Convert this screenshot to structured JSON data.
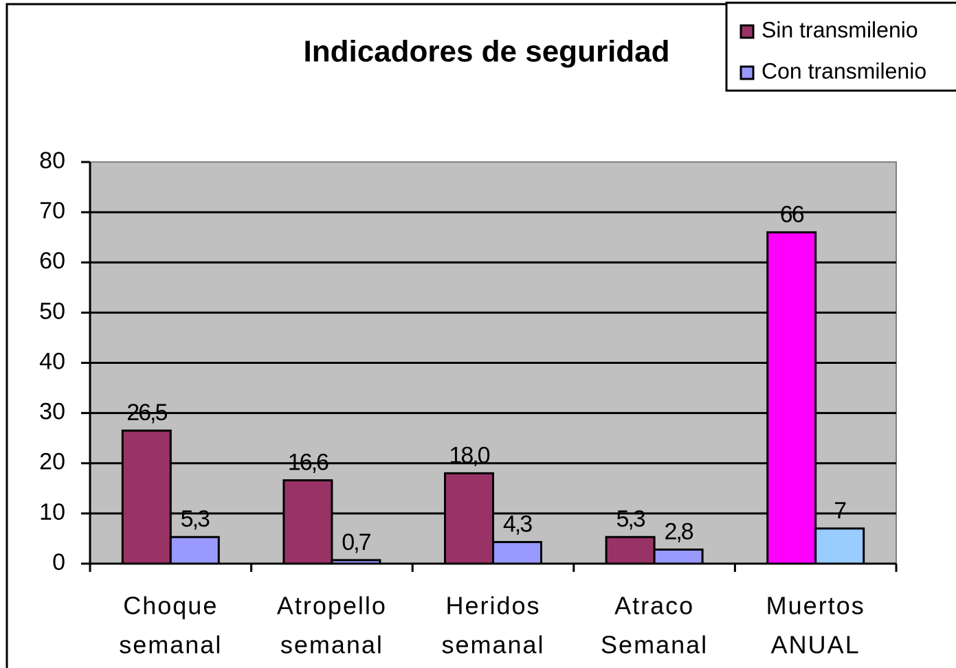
{
  "chart_data": {
    "type": "bar",
    "title": "Indicadores de seguridad",
    "categories": [
      [
        "Choque",
        "semanal"
      ],
      [
        "Atropello",
        "semanal"
      ],
      [
        "Heridos",
        "semanal"
      ],
      [
        "Atraco",
        "Semanal"
      ],
      [
        "Muertos",
        "ANUAL"
      ]
    ],
    "series": [
      {
        "name": "Sin transmilenio",
        "color": "#993366",
        "colors": [
          "#993366",
          "#993366",
          "#993366",
          "#993366",
          "#ff00ff"
        ],
        "values": [
          26.5,
          16.6,
          18.0,
          5.3,
          66
        ],
        "value_labels": [
          "26,5",
          "16,6",
          "18,0",
          "5,3",
          "66"
        ]
      },
      {
        "name": "Con transmilenio",
        "color": "#9999ff",
        "colors": [
          "#9999ff",
          "#9999ff",
          "#9999ff",
          "#9999ff",
          "#99ccff"
        ],
        "values": [
          5.3,
          0.7,
          4.3,
          2.8,
          7
        ],
        "value_labels": [
          "5,3",
          "0,7",
          "4,3",
          "2,8",
          "7"
        ]
      }
    ],
    "ylim": [
      0,
      80
    ],
    "yticks": [
      0,
      10,
      20,
      30,
      40,
      50,
      60,
      70,
      80
    ],
    "grid": true,
    "legend": "top-right"
  }
}
